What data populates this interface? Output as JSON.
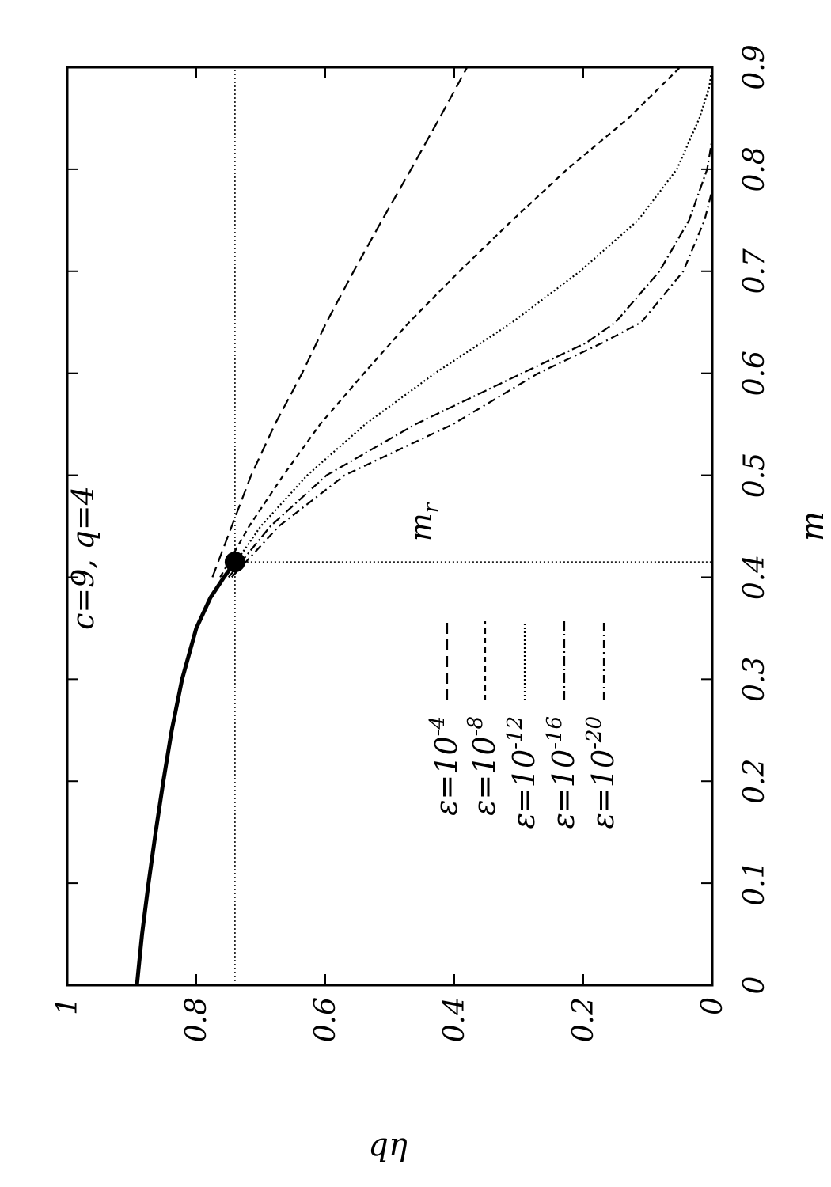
{
  "chart_data": {
    "type": "line",
    "title": "",
    "annotation": "c=9, q=4",
    "xlabel": "m",
    "ylabel": "qη",
    "xlim": [
      0,
      0.9
    ],
    "ylim": [
      0,
      1
    ],
    "xticks": [
      "0",
      "0.1",
      "0.2",
      "0.3",
      "0.4",
      "0.5",
      "0.6",
      "0.7",
      "0.8",
      "0.9"
    ],
    "yticks": [
      "0",
      "0.2",
      "0.4",
      "0.6",
      "0.8",
      "1"
    ],
    "grid": false,
    "legend_position": "bottom-center",
    "marker": {
      "label": "m_r",
      "label_main": "m",
      "label_sub": "r",
      "x": 0.415,
      "y": 0.74
    },
    "reference_lines": {
      "horizontal_y": 0.74,
      "vertical_x": 0.415
    },
    "main_curve": {
      "x": [
        0.0,
        0.05,
        0.1,
        0.15,
        0.2,
        0.25,
        0.3,
        0.35,
        0.38,
        0.4,
        0.415
      ],
      "y": [
        0.892,
        0.884,
        0.874,
        0.863,
        0.851,
        0.838,
        0.822,
        0.8,
        0.778,
        0.757,
        0.74
      ]
    },
    "series": [
      {
        "name_base": "ε=10",
        "name_exp": "-4",
        "dash": "14,7",
        "x": [
          0.4,
          0.45,
          0.5,
          0.55,
          0.6,
          0.65,
          0.7,
          0.75,
          0.8,
          0.85,
          0.9
        ],
        "y": [
          0.775,
          0.745,
          0.715,
          0.678,
          0.636,
          0.598,
          0.556,
          0.512,
          0.467,
          0.423,
          0.38
        ]
      },
      {
        "name_base": "ε=10",
        "name_exp": "-8",
        "dash": "7,5",
        "x": [
          0.4,
          0.45,
          0.5,
          0.55,
          0.6,
          0.65,
          0.7,
          0.75,
          0.8,
          0.85,
          0.9
        ],
        "y": [
          0.763,
          0.718,
          0.665,
          0.608,
          0.54,
          0.47,
          0.392,
          0.31,
          0.225,
          0.13,
          0.05
        ]
      },
      {
        "name_base": "ε=10",
        "name_exp": "-12",
        "dash": "2,3",
        "x": [
          0.4,
          0.45,
          0.5,
          0.55,
          0.6,
          0.65,
          0.7,
          0.75,
          0.8,
          0.85,
          0.88,
          0.9
        ],
        "y": [
          0.755,
          0.7,
          0.628,
          0.538,
          0.43,
          0.31,
          0.205,
          0.115,
          0.055,
          0.02,
          0.005,
          0.0
        ]
      },
      {
        "name_base": "ε=10",
        "name_exp": "-16",
        "dash": "12,4,2,4",
        "x": [
          0.4,
          0.45,
          0.5,
          0.55,
          0.6,
          0.63,
          0.65,
          0.7,
          0.75,
          0.8,
          0.83
        ],
        "y": [
          0.75,
          0.685,
          0.598,
          0.46,
          0.295,
          0.195,
          0.15,
          0.082,
          0.036,
          0.008,
          0.0
        ]
      },
      {
        "name_base": "ε=10",
        "name_exp": "-20",
        "dash": "10,5,2,5",
        "x": [
          0.4,
          0.45,
          0.5,
          0.55,
          0.6,
          0.63,
          0.65,
          0.7,
          0.75,
          0.78
        ],
        "y": [
          0.745,
          0.672,
          0.57,
          0.402,
          0.27,
          0.17,
          0.11,
          0.045,
          0.012,
          0.0
        ]
      }
    ]
  }
}
